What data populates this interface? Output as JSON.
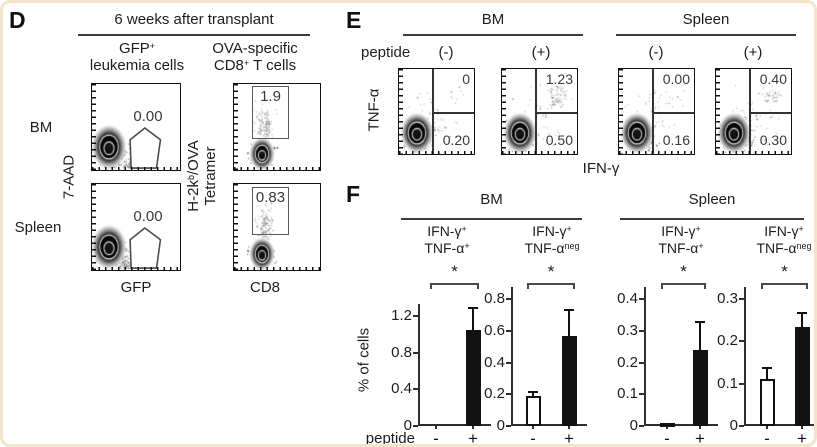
{
  "panelD": {
    "label": "D",
    "header": "6 weeks after transplant",
    "col1": {
      "l1b": "GFP",
      "l1s": "+",
      "l2": "leukemia cells"
    },
    "col2": {
      "l1": "OVA-specific",
      "l2b": "CD8",
      "l2s": "+",
      "l2r": " T cells"
    },
    "rows": [
      "BM",
      "Spleen"
    ],
    "yl": "7-AAD",
    "yr": {
      "b1": "H-2k",
      "s1": "b",
      "b2": "/OVA",
      "line2": "Tetramer"
    },
    "xl1": "GFP",
    "xl2": "CD8",
    "gfp_plots": [
      {
        "value": "0.00"
      },
      {
        "value": "0.00"
      }
    ],
    "cd8_plots": [
      {
        "value": "1.9"
      },
      {
        "value": "0.83"
      }
    ]
  },
  "panelE": {
    "label": "E",
    "groups": [
      "BM",
      "Spleen"
    ],
    "peptide_label": "peptide",
    "conditions": [
      "(-)",
      "(+)",
      "(-)",
      "(+)"
    ],
    "y_axis": "TNF-α",
    "x_axis": "IFN-γ",
    "plots": [
      {
        "tr": "0",
        "br": "0.20"
      },
      {
        "tr": "1.23",
        "br": "0.50"
      },
      {
        "tr": "0.00",
        "br": "0.16"
      },
      {
        "tr": "0.40",
        "br": "0.30"
      }
    ]
  },
  "panelF": {
    "label": "F"
  },
  "chart_data": {
    "type": "bar",
    "groups": [
      "BM",
      "Spleen"
    ],
    "ylabel": "% of cells",
    "xlabel": "peptide",
    "x_tick_labels": [
      "-",
      "+"
    ],
    "legend": "open bars = peptide (-), filled bars = peptide (+)",
    "charts": [
      {
        "group": "BM",
        "t1b": "IFN-γ",
        "t1s": "+",
        "t2b": "TNF-α",
        "t2s": "+",
        "sig": "*",
        "ymax": 1.2,
        "ticks": [
          "0",
          "0.4",
          "0.8",
          "1.2"
        ],
        "bars": [
          {
            "label": "-",
            "value": 0.02,
            "err": 0,
            "fill": "white"
          },
          {
            "label": "+",
            "value": 1.05,
            "err": 0.25,
            "fill": "black"
          }
        ]
      },
      {
        "group": "BM",
        "t1b": "IFN-γ",
        "t1s": "+",
        "t2b": "TNF-α",
        "t2s": "neg",
        "sig": "*",
        "ymax": 0.8,
        "ticks": [
          "0",
          "0.2",
          "0.4",
          "0.6",
          "0.8"
        ],
        "bars": [
          {
            "label": "-",
            "value": 0.19,
            "err": 0.03,
            "fill": "white"
          },
          {
            "label": "+",
            "value": 0.57,
            "err": 0.17,
            "fill": "black"
          }
        ]
      },
      {
        "group": "Spleen",
        "t1b": "IFN-γ",
        "t1s": "+",
        "t2b": "TNF-α",
        "t2s": "+",
        "sig": "*",
        "ymax": 0.4,
        "ticks": [
          "0",
          "0.1",
          "0.2",
          "0.3",
          "0.4"
        ],
        "bars": [
          {
            "label": "-",
            "value": 0.01,
            "err": 0,
            "fill": "white"
          },
          {
            "label": "+",
            "value": 0.24,
            "err": 0.09,
            "fill": "black"
          }
        ]
      },
      {
        "group": "Spleen",
        "t1b": "IFN-γ",
        "t1s": "+",
        "t2b": "TNF-α",
        "t2s": "neg",
        "sig": "*",
        "ymax": 0.3,
        "ticks": [
          "0",
          "0.1",
          "0.2",
          "0.3"
        ],
        "bars": [
          {
            "label": "-",
            "value": 0.11,
            "err": 0.03,
            "fill": "white"
          },
          {
            "label": "+",
            "value": 0.235,
            "err": 0.035,
            "fill": "black"
          }
        ]
      }
    ]
  }
}
